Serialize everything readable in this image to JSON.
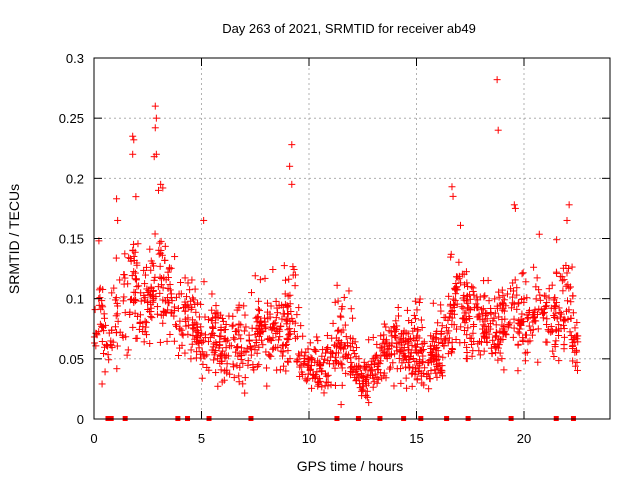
{
  "chart_data": {
    "type": "scatter",
    "title": "Day 263 of 2021, SRMTID for receiver ab49",
    "xlabel": "GPS time / hours",
    "ylabel": "SRMTID / TECUs",
    "xlim": [
      0,
      24
    ],
    "ylim": [
      0,
      0.3
    ],
    "xticks": [
      0,
      5,
      10,
      15,
      20
    ],
    "xtick_labels": [
      "0",
      "5",
      "10",
      "15",
      "20"
    ],
    "yticks": [
      0,
      0.05,
      0.1,
      0.15,
      0.2,
      0.25,
      0.3
    ],
    "ytick_labels": [
      "0",
      "0.05",
      "0.1",
      "0.15",
      "0.2",
      "0.25",
      "0.3"
    ],
    "grid": true,
    "marker": "+",
    "color": "#ff0000",
    "baseline_markers_x": [
      0.65,
      0.8,
      1.45,
      3.9,
      4.35,
      5.35,
      7.3,
      11.3,
      12.3,
      13.3,
      14.4,
      15.2,
      16.4,
      17.4,
      19.4,
      21.5,
      22.3
    ],
    "profile": [
      [
        0.0,
        0.07,
        0.03
      ],
      [
        0.3,
        0.08,
        0.035
      ],
      [
        0.6,
        0.06,
        0.025
      ],
      [
        1.0,
        0.085,
        0.03
      ],
      [
        1.5,
        0.09,
        0.035
      ],
      [
        2.0,
        0.11,
        0.04
      ],
      [
        2.5,
        0.09,
        0.035
      ],
      [
        3.0,
        0.12,
        0.045
      ],
      [
        3.5,
        0.1,
        0.035
      ],
      [
        4.0,
        0.08,
        0.03
      ],
      [
        4.5,
        0.085,
        0.03
      ],
      [
        5.0,
        0.065,
        0.025
      ],
      [
        5.5,
        0.065,
        0.025
      ],
      [
        6.0,
        0.06,
        0.025
      ],
      [
        7.0,
        0.06,
        0.025
      ],
      [
        7.5,
        0.07,
        0.025
      ],
      [
        8.0,
        0.065,
        0.025
      ],
      [
        8.5,
        0.07,
        0.025
      ],
      [
        9.0,
        0.08,
        0.03
      ],
      [
        9.3,
        0.1,
        0.04
      ],
      [
        9.6,
        0.055,
        0.02
      ],
      [
        10.0,
        0.045,
        0.018
      ],
      [
        10.5,
        0.04,
        0.015
      ],
      [
        11.0,
        0.05,
        0.02
      ],
      [
        11.5,
        0.06,
        0.025
      ],
      [
        12.0,
        0.055,
        0.02
      ],
      [
        12.5,
        0.03,
        0.012
      ],
      [
        13.0,
        0.04,
        0.015
      ],
      [
        13.5,
        0.055,
        0.02
      ],
      [
        14.0,
        0.065,
        0.025
      ],
      [
        14.5,
        0.055,
        0.02
      ],
      [
        15.0,
        0.06,
        0.025
      ],
      [
        15.5,
        0.05,
        0.02
      ],
      [
        16.0,
        0.055,
        0.02
      ],
      [
        16.5,
        0.07,
        0.025
      ],
      [
        17.0,
        0.1,
        0.035
      ],
      [
        17.5,
        0.085,
        0.03
      ],
      [
        18.0,
        0.08,
        0.03
      ],
      [
        18.5,
        0.07,
        0.025
      ],
      [
        19.0,
        0.075,
        0.03
      ],
      [
        19.5,
        0.09,
        0.03
      ],
      [
        20.0,
        0.07,
        0.025
      ],
      [
        20.5,
        0.085,
        0.03
      ],
      [
        21.0,
        0.09,
        0.03
      ],
      [
        21.5,
        0.08,
        0.03
      ],
      [
        22.0,
        0.095,
        0.035
      ],
      [
        22.5,
        0.06,
        0.02
      ]
    ],
    "outliers": [
      [
        2.85,
        0.26
      ],
      [
        2.9,
        0.25
      ],
      [
        2.85,
        0.242
      ],
      [
        2.8,
        0.218
      ],
      [
        2.9,
        0.22
      ],
      [
        1.8,
        0.235
      ],
      [
        1.8,
        0.22
      ],
      [
        1.85,
        0.232
      ],
      [
        9.2,
        0.228
      ],
      [
        9.1,
        0.21
      ],
      [
        9.2,
        0.195
      ],
      [
        18.75,
        0.282
      ],
      [
        18.8,
        0.24
      ],
      [
        22.1,
        0.178
      ],
      [
        22.0,
        0.165
      ],
      [
        16.65,
        0.193
      ],
      [
        16.7,
        0.185
      ],
      [
        5.1,
        0.165
      ],
      [
        1.05,
        0.183
      ],
      [
        1.1,
        0.165
      ],
      [
        3.1,
        0.195
      ],
      [
        3.2,
        0.192
      ],
      [
        19.6,
        0.175
      ],
      [
        19.55,
        0.178
      ],
      [
        3.0,
        0.19
      ]
    ],
    "n_points": 1500
  }
}
